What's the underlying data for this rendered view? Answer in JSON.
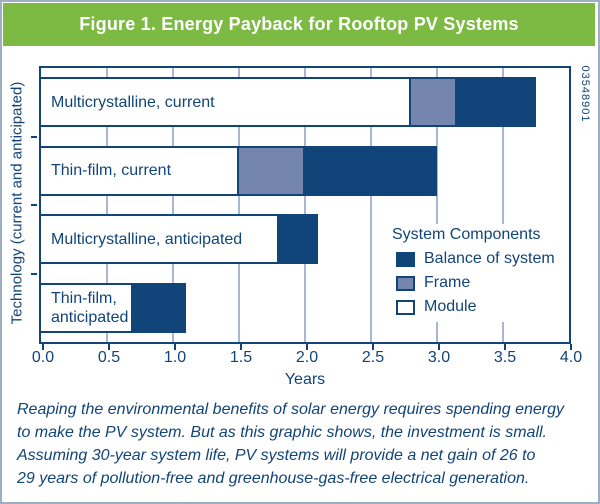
{
  "header": {
    "title": "Figure 1. Energy Payback for Rooftop PV Systems",
    "doc_number": "03548901"
  },
  "caption": {
    "text": "Reaping the environmental benefits of solar energy requires spending energy\nto make the PV system. But as this graphic shows, the investment is small.\nAssuming 30-year system life, PV systems will provide a net gain of 26 to\n29 years of pollution-free and greenhouse-gas-free electrical generation."
  },
  "chart_data": {
    "type": "bar",
    "orientation": "horizontal-stacked",
    "title": "Figure 1. Energy Payback for Rooftop PV Systems",
    "xlabel": "Years",
    "ylabel": "Technology (current and anticipated)",
    "xlim": [
      0.0,
      4.0
    ],
    "xtick_labels": [
      "0.0",
      "0.5",
      "1.0",
      "1.5",
      "2.0",
      "2.5",
      "3.0",
      "3.5",
      "4.0"
    ],
    "grid": "vertical gridlines every 0.5 years",
    "categories": [
      "Multicrystalline, current",
      "Thin-film, current",
      "Multicrystalline, anticipated",
      "Thin-film, anticipated"
    ],
    "series": [
      {
        "name": "Module",
        "color": "#FFFFFF",
        "values": [
          2.8,
          1.5,
          1.8,
          0.7
        ]
      },
      {
        "name": "Frame",
        "color": "#7486AE",
        "values": [
          0.35,
          0.5,
          0.0,
          0.0
        ]
      },
      {
        "name": "Balance of system",
        "color": "#114478",
        "values": [
          0.6,
          1.0,
          0.3,
          0.4
        ]
      }
    ],
    "totals_years": [
      3.75,
      3.0,
      2.1,
      1.1
    ],
    "legend": {
      "title": "System Components",
      "position": "inside-lower-right",
      "entries": [
        {
          "label": "Balance of system",
          "color": "#114478"
        },
        {
          "label": "Frame",
          "color": "#7486AE"
        },
        {
          "label": "Module",
          "color": "#FFFFFF"
        }
      ]
    }
  },
  "colors": {
    "accent_green": "#7CBA44",
    "navy": "#114478",
    "frame_blue": "#7486AE",
    "gridline": "#A9B6D3",
    "outer_border": "#9FAFC2",
    "title_text": "#FFFFFF",
    "background": "#FFFFFF"
  }
}
